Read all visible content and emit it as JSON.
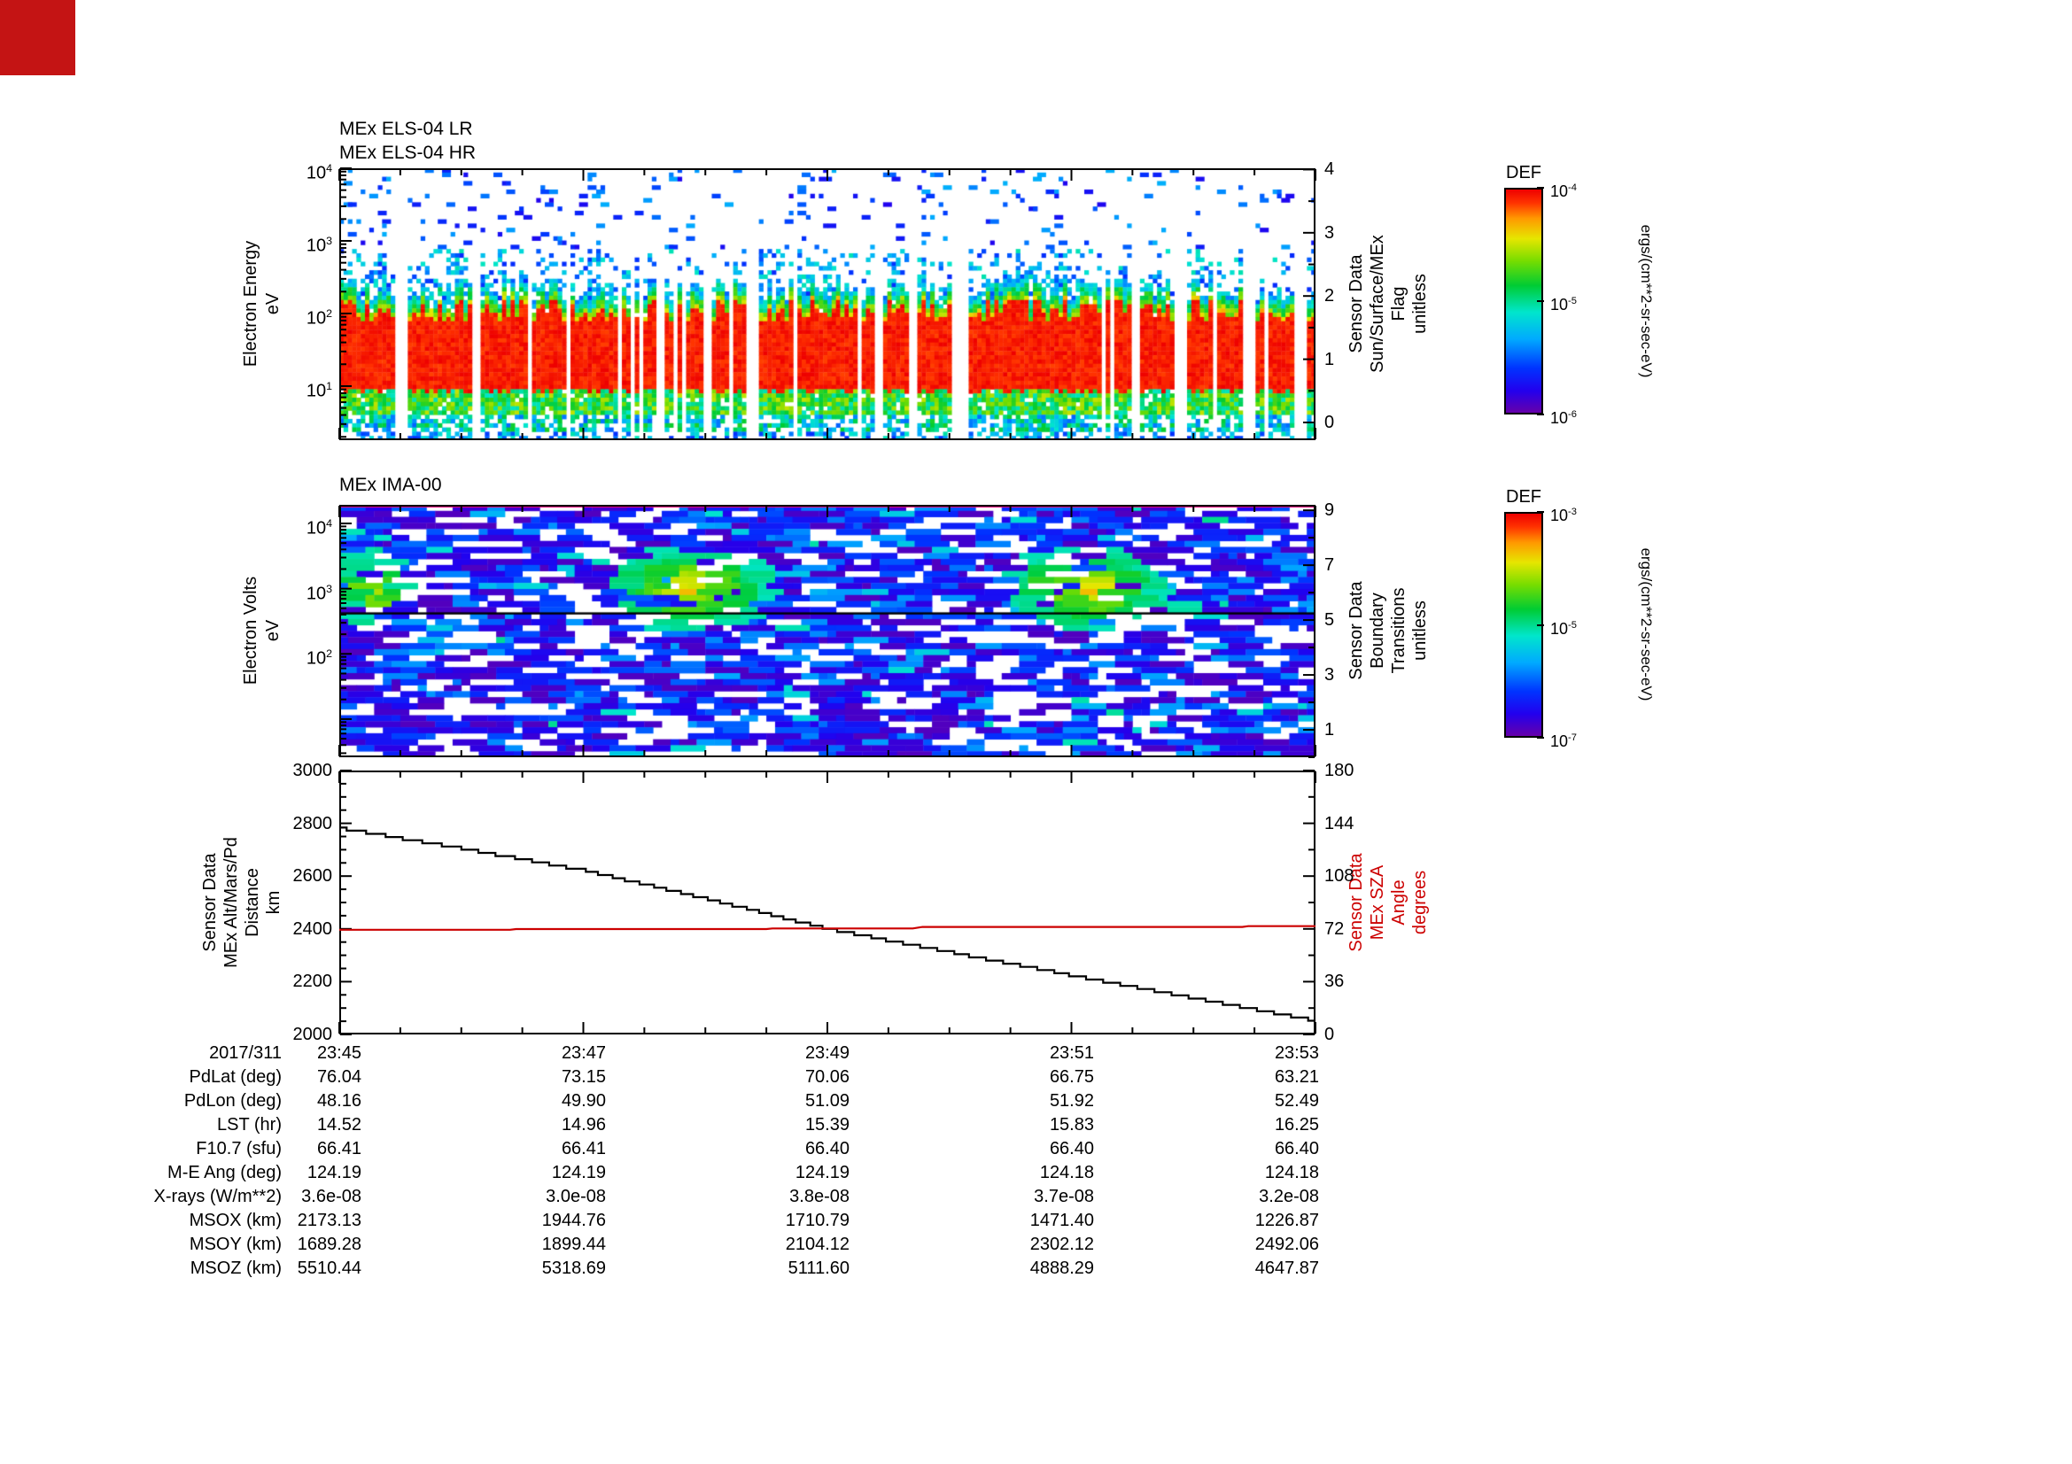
{
  "page": {
    "background": "#ffffff",
    "corner_marker_color": "#c41414"
  },
  "chart_data": [
    {
      "type": "heatmap",
      "id": "els",
      "titles": [
        "MEx ELS-04 LR",
        "MEx ELS-04 HR"
      ],
      "y_axis": {
        "label_lines": [
          "Electron Energy",
          "eV"
        ],
        "scale": "log",
        "range_ev": [
          1.8,
          10000
        ],
        "tick_exponents": [
          1,
          2,
          3,
          4
        ]
      },
      "right_axis": {
        "label_lines": [
          "Sensor Data",
          "Sun/Surface/MEx",
          "Flag",
          "unitless"
        ],
        "range": [
          -0.28,
          4.02
        ],
        "ticks": [
          0,
          1,
          2,
          3,
          4
        ]
      },
      "colorbar": {
        "title": "DEF",
        "unit": "ergs/(cm**2-sr-sec-eV)",
        "tick_exponents": [
          -4,
          -5,
          -6
        ]
      },
      "x_range_minutes": [
        0,
        8
      ],
      "seed": 20171,
      "features": {
        "intense_red_band_ev": [
          8,
          120
        ],
        "transition_band": "yellow-green fringe above and below red band",
        "sparse_blue_speckle_ev": [
          300,
          10000
        ],
        "green_speckle_below_ev": [
          2,
          8
        ],
        "data_gap_columns": 26
      }
    },
    {
      "type": "heatmap",
      "id": "ima",
      "titles": [
        "MEx IMA-00"
      ],
      "y_axis": {
        "label_lines": [
          "Electron Volts",
          "eV"
        ],
        "scale": "log",
        "range_ev": [
          2.6,
          19300
        ],
        "tick_exponents": [
          2,
          3,
          4
        ]
      },
      "right_axis": {
        "label_lines": [
          "Sensor Data",
          "Boundary",
          "Transitions",
          "unitless"
        ],
        "range": [
          0,
          9.2
        ],
        "ticks": [
          1,
          3,
          5,
          7,
          9
        ]
      },
      "colorbar": {
        "title": "DEF",
        "unit": "ergs/(cm**2-sr-sec-eV)",
        "tick_exponents": [
          -3,
          -5,
          -7
        ]
      },
      "seed": 31107,
      "features": {
        "background": "blue-purple mosaic with white gaps",
        "green_patches_t": [
          [
            0.0,
            0.07
          ],
          [
            0.26,
            0.46
          ],
          [
            0.67,
            0.86
          ]
        ],
        "green_patch_ev": [
          250,
          3500
        ],
        "black_line_ev": 420,
        "pink_top_line": true
      }
    },
    {
      "type": "line",
      "id": "ephemeris",
      "x_axis": {
        "date": "2017/311",
        "tick_labels": [
          "23:45",
          "23:47",
          "23:49",
          "23:51",
          "23:53"
        ],
        "range_minutes": [
          0,
          8
        ]
      },
      "left_axis": {
        "label_lines": [
          "Sensor Data",
          "MEx Alt/Mars/Pd",
          "Distance",
          "km"
        ],
        "range": [
          2000,
          3000
        ],
        "ticks": [
          2000,
          2200,
          2400,
          2600,
          2800,
          3000
        ]
      },
      "right_axis": {
        "label_lines": [
          "Sensor Data",
          "MEx SZA",
          "Angle",
          "degrees"
        ],
        "range": [
          0,
          180
        ],
        "ticks": [
          0,
          36,
          72,
          108,
          144,
          180
        ],
        "color": "#cc0000"
      },
      "series": [
        {
          "name": "altitude_km",
          "color": "#000000",
          "style": "steps",
          "step_quantum_km": 12,
          "anchors": [
            [
              0,
              2782
            ],
            [
              1,
              2705
            ],
            [
              2,
              2622
            ],
            [
              3,
              2515
            ],
            [
              4,
              2400
            ],
            [
              5,
              2312
            ],
            [
              6,
              2224
            ],
            [
              7,
              2138
            ],
            [
              8,
              2052
            ]
          ]
        },
        {
          "name": "sza_deg",
          "color": "#cc0000",
          "style": "line",
          "anchors": [
            [
              0,
              71.4
            ],
            [
              1.4,
              71.4
            ],
            [
              1.45,
              71.9
            ],
            [
              3.5,
              71.9
            ],
            [
              3.55,
              72.3
            ],
            [
              4.7,
              72.3
            ],
            [
              4.78,
              73.3
            ],
            [
              7.4,
              73.35
            ],
            [
              7.45,
              73.9
            ],
            [
              8,
              73.9
            ]
          ]
        }
      ]
    }
  ],
  "table": {
    "rows": [
      {
        "label": "2017/311",
        "values": [
          "23:45",
          "23:47",
          "23:49",
          "23:51",
          "23:53"
        ]
      },
      {
        "label": "PdLat (deg)",
        "values": [
          "76.04",
          "73.15",
          "70.06",
          "66.75",
          "63.21"
        ]
      },
      {
        "label": "PdLon (deg)",
        "values": [
          "48.16",
          "49.90",
          "51.09",
          "51.92",
          "52.49"
        ]
      },
      {
        "label": "LST (hr)",
        "values": [
          "14.52",
          "14.96",
          "15.39",
          "15.83",
          "16.25"
        ]
      },
      {
        "label": "F10.7 (sfu)",
        "values": [
          "66.41",
          "66.41",
          "66.40",
          "66.40",
          "66.40"
        ]
      },
      {
        "label": "M-E Ang (deg)",
        "values": [
          "124.19",
          "124.19",
          "124.19",
          "124.18",
          "124.18"
        ]
      },
      {
        "label": "X-rays (W/m**2)",
        "values": [
          "3.6e-08",
          "3.0e-08",
          "3.8e-08",
          "3.7e-08",
          "3.2e-08"
        ]
      },
      {
        "label": "MSOX (km)",
        "values": [
          "2173.13",
          "1944.76",
          "1710.79",
          "1471.40",
          "1226.87"
        ]
      },
      {
        "label": "MSOY (km)",
        "values": [
          "1689.28",
          "1899.44",
          "2104.12",
          "2302.12",
          "2492.06"
        ]
      },
      {
        "label": "MSOZ (km)",
        "values": [
          "5510.44",
          "5318.69",
          "5111.60",
          "4888.29",
          "4647.87"
        ]
      }
    ]
  },
  "colors": {
    "accent_red": "#cc0000",
    "frame": "#000000",
    "colormap_stops": [
      "#ee0000",
      "#ff3300",
      "#ff9900",
      "#e6e600",
      "#77dd00",
      "#00cc33",
      "#00e6cc",
      "#00aaff",
      "#0033ff",
      "#2200ee",
      "#6600aa"
    ]
  }
}
